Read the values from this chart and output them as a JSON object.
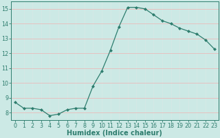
{
  "x": [
    0,
    1,
    2,
    3,
    4,
    5,
    6,
    7,
    8,
    9,
    10,
    11,
    12,
    13,
    14,
    15,
    16,
    17,
    18,
    19,
    20,
    21,
    22,
    23
  ],
  "y": [
    8.7,
    8.3,
    8.3,
    8.2,
    7.8,
    7.9,
    8.2,
    8.3,
    8.3,
    9.8,
    10.8,
    12.2,
    13.8,
    15.1,
    15.1,
    15.0,
    14.6,
    14.2,
    14.0,
    13.7,
    13.5,
    13.3,
    12.9,
    12.3
  ],
  "line_color": "#2e7d6e",
  "marker": "D",
  "marker_size": 2.0,
  "bg_color": "#cce9e5",
  "grid_major_color": "#f0b0b0",
  "grid_minor_color": "#d8e8e6",
  "tick_color": "#2e7d6e",
  "label_color": "#2e7d6e",
  "xlabel": "Humidex (Indice chaleur)",
  "ylim": [
    7.5,
    15.5
  ],
  "yticks": [
    8,
    9,
    10,
    11,
    12,
    13,
    14,
    15
  ],
  "xticks": [
    0,
    1,
    2,
    3,
    4,
    5,
    6,
    7,
    8,
    9,
    10,
    11,
    12,
    13,
    14,
    15,
    16,
    17,
    18,
    19,
    20,
    21,
    22,
    23
  ],
  "xlabel_fontsize": 7.0,
  "tick_fontsize": 5.8,
  "linewidth": 0.9
}
